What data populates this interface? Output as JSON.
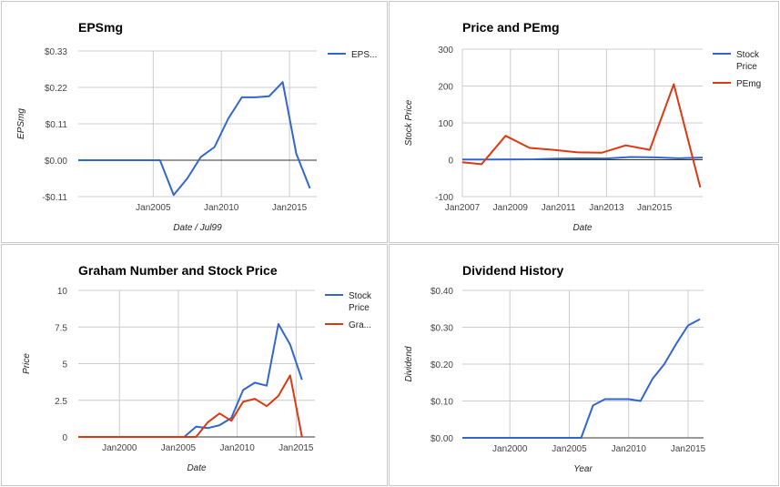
{
  "colors": {
    "blue": "#3366cc",
    "red": "#dc3912"
  },
  "chart_data": [
    {
      "type": "line",
      "title": "EPSmg",
      "xlabel": "Date / Jul99",
      "ylabel": "EPSmg",
      "xlim": [
        1999.5,
        2017.0
      ],
      "ylim": [
        -0.11,
        0.33
      ],
      "yticks": [
        -0.11,
        0.0,
        0.11,
        0.22,
        0.33
      ],
      "ytick_labels": [
        "-$0.11",
        "$0.00",
        "$0.11",
        "$0.22",
        "$0.33"
      ],
      "xticks": [
        2005,
        2010,
        2015
      ],
      "xtick_labels": [
        "Jan2005",
        "Jan2010",
        "Jan2015"
      ],
      "zero_line": 0,
      "legend_position": "right",
      "series": [
        {
          "name": "EPS...",
          "color": "#3366cc",
          "x": [
            1999.5,
            2005.5,
            2006.5,
            2007.5,
            2008.5,
            2009.5,
            2010.5,
            2011.5,
            2012.5,
            2013.5,
            2014.5,
            2015.5,
            2016.5
          ],
          "y": [
            0.0,
            0.0,
            -0.105,
            -0.055,
            0.01,
            0.04,
            0.125,
            0.19,
            0.19,
            0.193,
            0.236,
            0.02,
            -0.085
          ]
        }
      ]
    },
    {
      "type": "line",
      "title": "Price and PEmg",
      "xlabel": "Date",
      "ylabel": "Stock Price",
      "xlim": [
        2007.0,
        2017.0
      ],
      "ylim": [
        -100,
        300
      ],
      "yticks": [
        -100,
        0,
        100,
        200,
        300
      ],
      "ytick_labels": [
        "-100",
        "0",
        "100",
        "200",
        "300"
      ],
      "xticks": [
        2007,
        2009,
        2011,
        2013,
        2015
      ],
      "xtick_labels": [
        "Jan2007",
        "Jan2009",
        "Jan2011",
        "Jan2013",
        "Jan2015"
      ],
      "zero_line": 0,
      "legend_position": "right",
      "series": [
        {
          "name": "Stock Price",
          "color": "#3366cc",
          "x": [
            2007.0,
            2008.0,
            2009.0,
            2010.0,
            2011.0,
            2012.0,
            2013.0,
            2014.0,
            2015.0,
            2016.0,
            2017.0
          ],
          "y": [
            0.5,
            0.7,
            1.1,
            1.3,
            3.3,
            3.6,
            3.5,
            7.5,
            6.3,
            4.0,
            6.0
          ]
        },
        {
          "name": "PEmg",
          "color": "#dc3912",
          "x": [
            2007.0,
            2007.8,
            2008.8,
            2009.8,
            2010.8,
            2011.8,
            2012.8,
            2013.8,
            2014.8,
            2015.8,
            2016.9
          ],
          "y": [
            -7,
            -12,
            65,
            32,
            27,
            20,
            19,
            39,
            27,
            205,
            -75
          ]
        }
      ]
    },
    {
      "type": "line",
      "title": "Graham Number and Stock Price",
      "xlabel": "Date",
      "ylabel": "Price",
      "xlim": [
        1996.5,
        2016.6
      ],
      "ylim": [
        0,
        10
      ],
      "yticks": [
        0,
        2.5,
        5,
        7.5,
        10
      ],
      "ytick_labels": [
        "0",
        "2.5",
        "5",
        "7.5",
        "10"
      ],
      "xticks": [
        2000,
        2005,
        2010,
        2015
      ],
      "xtick_labels": [
        "Jan2000",
        "Jan2005",
        "Jan2010",
        "Jan2015"
      ],
      "legend_position": "right",
      "series": [
        {
          "name": "Stock Price",
          "color": "#3366cc",
          "x": [
            1996.5,
            2005.5,
            2006.5,
            2007.5,
            2008.5,
            2009.5,
            2010.5,
            2011.5,
            2012.5,
            2013.5,
            2014.5,
            2015.5
          ],
          "y": [
            0,
            0,
            0.7,
            0.6,
            0.8,
            1.3,
            3.2,
            3.7,
            3.5,
            7.7,
            6.3,
            3.9
          ]
        },
        {
          "name": "Gra...",
          "color": "#dc3912",
          "x": [
            1996.5,
            2006.5,
            2007.5,
            2008.5,
            2009.5,
            2010.5,
            2011.5,
            2012.5,
            2013.5,
            2014.5,
            2015.5
          ],
          "y": [
            0,
            0,
            1.0,
            1.6,
            1.1,
            2.4,
            2.6,
            2.1,
            2.8,
            4.2,
            0
          ]
        }
      ]
    },
    {
      "type": "line",
      "title": "Dividend History",
      "xlabel": "Year",
      "ylabel": "Dividend",
      "xlim": [
        1996.0,
        2016.3
      ],
      "ylim": [
        0,
        0.4
      ],
      "yticks": [
        0,
        0.1,
        0.2,
        0.3,
        0.4
      ],
      "ytick_labels": [
        "$0.00",
        "$0.10",
        "$0.20",
        "$0.30",
        "$0.40"
      ],
      "xticks": [
        2000,
        2005,
        2010,
        2015
      ],
      "xtick_labels": [
        "Jan2000",
        "Jan2005",
        "Jan2010",
        "Jan2015"
      ],
      "legend_position": "none",
      "series": [
        {
          "name": "",
          "color": "#3366cc",
          "x": [
            1996.0,
            2005.0,
            2006.0,
            2007.0,
            2008.0,
            2009.0,
            2010.0,
            2011.0,
            2012.0,
            2013.0,
            2014.0,
            2015.0,
            2016.0
          ],
          "y": [
            0,
            0,
            0,
            0.088,
            0.105,
            0.105,
            0.105,
            0.1,
            0.16,
            0.2,
            0.255,
            0.305,
            0.322
          ]
        }
      ]
    }
  ]
}
